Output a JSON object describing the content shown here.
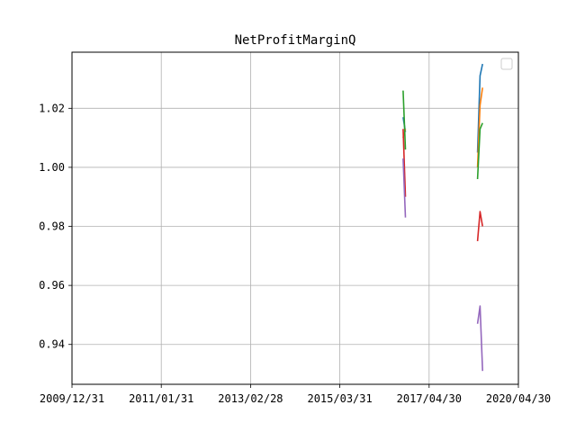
{
  "chart_data": {
    "type": "line",
    "title": "NetProfitMarginQ",
    "xlabel": "",
    "ylabel": "",
    "x_axis_type": "date",
    "xlim": [
      "2009-12-31",
      "2020-04-30"
    ],
    "ylim": [
      0.9265,
      1.039
    ],
    "grid": true,
    "legend": {
      "placement": "top-right",
      "entries": []
    },
    "x_ticks": [
      {
        "date": "2009-12-31",
        "label": "2009/12/31"
      },
      {
        "date": "2011-01-31",
        "label": "2011/01/31"
      },
      {
        "date": "2013-02-28",
        "label": "2013/02/28"
      },
      {
        "date": "2015-03-31",
        "label": "2015/03/31"
      },
      {
        "date": "2017-04-30",
        "label": "2017/04/30"
      },
      {
        "date": "2020-04-30",
        "label": "2020/04/30"
      }
    ],
    "y_ticks": [
      {
        "value": 0.94,
        "label": "0.94"
      },
      {
        "value": 0.96,
        "label": "0.96"
      },
      {
        "value": 0.98,
        "label": "0.98"
      },
      {
        "value": 1.0,
        "label": "1.00"
      },
      {
        "value": 1.02,
        "label": "1.02"
      }
    ],
    "series": [
      {
        "color": "#1f77b4",
        "segments": [
          [
            {
              "x": "2016-09-20",
              "y": 1.017
            },
            {
              "x": "2016-10-10",
              "y": 1.012
            }
          ],
          [
            {
              "x": "2018-12-15",
              "y": 1.005
            },
            {
              "x": "2019-01-15",
              "y": 1.031
            },
            {
              "x": "2019-02-15",
              "y": 1.035
            }
          ]
        ]
      },
      {
        "color": "#ff7f0e",
        "segments": [
          [
            {
              "x": "2016-09-20",
              "y": 1.01
            },
            {
              "x": "2016-10-10",
              "y": 1.013
            }
          ],
          [
            {
              "x": "2018-12-15",
              "y": 1.0
            },
            {
              "x": "2019-01-15",
              "y": 1.021
            },
            {
              "x": "2019-02-15",
              "y": 1.027
            }
          ]
        ]
      },
      {
        "color": "#2ca02c",
        "segments": [
          [
            {
              "x": "2016-09-20",
              "y": 1.026
            },
            {
              "x": "2016-10-10",
              "y": 1.006
            }
          ],
          [
            {
              "x": "2018-12-15",
              "y": 0.996
            },
            {
              "x": "2019-01-15",
              "y": 1.013
            },
            {
              "x": "2019-02-15",
              "y": 1.015
            }
          ]
        ]
      },
      {
        "color": "#d62728",
        "segments": [
          [
            {
              "x": "2016-09-20",
              "y": 1.013
            },
            {
              "x": "2016-10-10",
              "y": 0.99
            }
          ],
          [
            {
              "x": "2018-12-15",
              "y": 0.975
            },
            {
              "x": "2019-01-15",
              "y": 0.985
            },
            {
              "x": "2019-02-15",
              "y": 0.98
            }
          ]
        ]
      },
      {
        "color": "#9467bd",
        "segments": [
          [
            {
              "x": "2016-09-20",
              "y": 1.003
            },
            {
              "x": "2016-10-10",
              "y": 0.983
            }
          ],
          [
            {
              "x": "2018-12-15",
              "y": 0.947
            },
            {
              "x": "2019-01-15",
              "y": 0.953
            },
            {
              "x": "2019-02-15",
              "y": 0.931
            }
          ]
        ]
      }
    ]
  }
}
